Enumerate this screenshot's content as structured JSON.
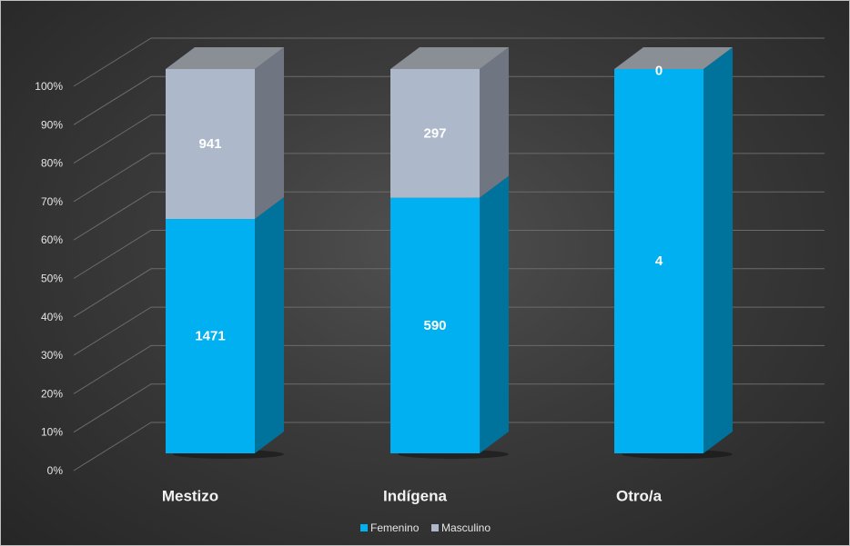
{
  "chart_data": {
    "type": "bar",
    "stacked": "percent",
    "three_d": true,
    "categories": [
      "Mestizo",
      "Indígena",
      "Otro/a"
    ],
    "series": [
      {
        "name": "Femenino",
        "values": [
          1471,
          590,
          4
        ],
        "color": "#00b0f0",
        "side_color": "#00739c"
      },
      {
        "name": "Masculino",
        "values": [
          941,
          297,
          0
        ],
        "color": "#adb9ca",
        "side_color": "#6f7681"
      }
    ],
    "data_labels": [
      [
        "1471",
        "590",
        "4"
      ],
      [
        "941",
        "297",
        "0"
      ]
    ],
    "y_tick_labels": [
      "0%",
      "10%",
      "20%",
      "30%",
      "40%",
      "50%",
      "60%",
      "70%",
      "80%",
      "90%",
      "100%"
    ],
    "ylim": [
      0,
      100
    ],
    "grid": true,
    "legend_position": "bottom",
    "background": "#333333",
    "top_face_color": "#8a8f96"
  }
}
